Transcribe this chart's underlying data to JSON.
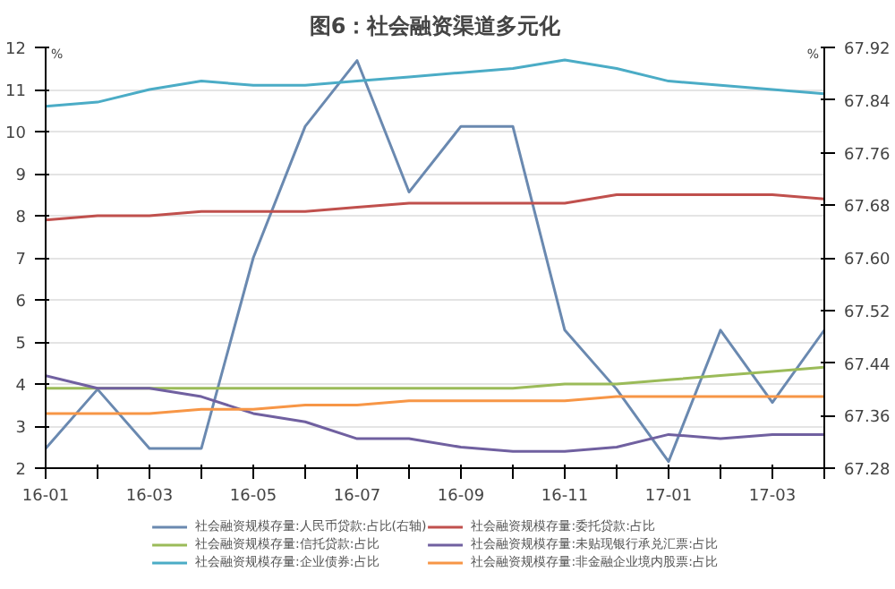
{
  "chart_data": {
    "type": "line",
    "title": "图6：社会融资渠道多元化",
    "categories": [
      "16-01",
      null,
      "16-03",
      null,
      "16-05",
      null,
      "16-07",
      null,
      "16-09",
      null,
      "16-11",
      null,
      "17-01",
      null,
      "17-03",
      null
    ],
    "ylabel": "%",
    "y2label": "%",
    "ylim": [
      2,
      12
    ],
    "yticks": [
      2,
      3,
      4,
      5,
      6,
      7,
      8,
      9,
      10,
      11,
      12
    ],
    "y2lim": [
      67.28,
      67.92
    ],
    "y2ticks": [
      {
        "value": 67.28,
        "label": "67.28"
      },
      {
        "value": 67.36,
        "label": "67.36"
      },
      {
        "value": 67.44,
        "label": "67.44"
      },
      {
        "value": 67.52,
        "label": "67.52"
      },
      {
        "value": 67.6,
        "label": "67.60"
      },
      {
        "value": 67.68,
        "label": "67.68"
      },
      {
        "value": 67.76,
        "label": "67.76"
      },
      {
        "value": 67.84,
        "label": "67.84"
      },
      {
        "value": 67.92,
        "label": "67.92"
      }
    ],
    "grid": "y",
    "legend": "bottom",
    "marker": "none",
    "line_style": "solid",
    "series": [
      {
        "name": "社会融资规模存量:人民币贷款:占比(右轴)",
        "color": "#6a89b0",
        "axis": "y2",
        "values": [
          67.31,
          67.4,
          67.31,
          67.31,
          67.6,
          67.8,
          67.9,
          67.7,
          67.8,
          67.8,
          67.49,
          67.4,
          67.29,
          67.49,
          67.38,
          67.49
        ]
      },
      {
        "name": "社会融资规模存量:委托贷款:占比",
        "color": "#c0504d",
        "values": [
          7.9,
          8.0,
          8.0,
          8.1,
          8.1,
          8.1,
          8.2,
          8.3,
          8.3,
          8.3,
          8.3,
          8.5,
          8.5,
          8.5,
          8.5,
          8.4
        ]
      },
      {
        "name": "社会融资规模存量:信托贷款:占比",
        "color": "#9bbb59",
        "values": [
          3.9,
          3.9,
          3.9,
          3.9,
          3.9,
          3.9,
          3.9,
          3.9,
          3.9,
          3.9,
          4.0,
          4.0,
          4.1,
          4.2,
          4.3,
          4.4
        ]
      },
      {
        "name": "社会融资规模存量:未贴现银行承兑汇票:占比",
        "color": "#7060a0",
        "values": [
          4.2,
          3.9,
          3.9,
          3.7,
          3.3,
          3.1,
          2.7,
          2.7,
          2.5,
          2.4,
          2.4,
          2.5,
          2.8,
          2.7,
          2.8,
          2.8
        ]
      },
      {
        "name": "社会融资规模存量:企业债券:占比",
        "color": "#4bacc6",
        "values": [
          10.6,
          10.7,
          11.0,
          11.2,
          11.1,
          11.1,
          11.2,
          11.3,
          11.4,
          11.5,
          11.7,
          11.5,
          11.2,
          11.1,
          11.0,
          10.9
        ]
      },
      {
        "name": "社会融资规模存量:非金融企业境内股票:占比",
        "color": "#f79646",
        "values": [
          3.3,
          3.3,
          3.3,
          3.4,
          3.4,
          3.5,
          3.5,
          3.6,
          3.6,
          3.6,
          3.6,
          3.7,
          3.7,
          3.7,
          3.7,
          3.7
        ]
      }
    ]
  }
}
